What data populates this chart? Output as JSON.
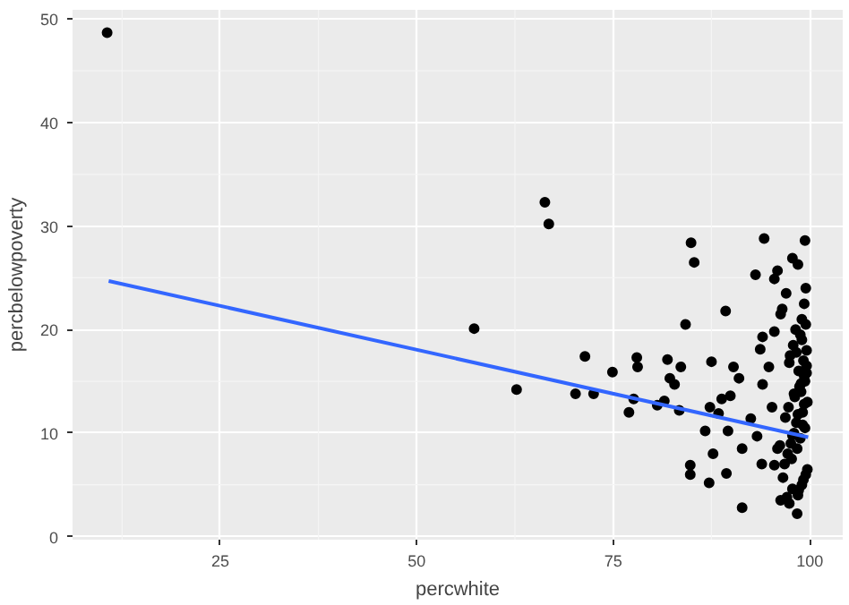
{
  "chart_data": {
    "type": "scatter",
    "xlabel": "percwhite",
    "ylabel": "percbelowpoverty",
    "xlim": [
      6.2,
      104.2
    ],
    "ylim": [
      -0.3,
      50.9
    ],
    "xticks": [
      25,
      50,
      75,
      100
    ],
    "yticks": [
      0,
      10,
      20,
      30,
      40,
      50
    ],
    "grid": true,
    "series": [
      {
        "marker": "circle",
        "color": "#000000",
        "x": [
          10.6,
          66.3,
          66.8,
          57.3,
          62.7,
          71.4,
          70.2,
          72.5,
          74.9,
          78.0,
          78.1,
          77.6,
          77.0,
          80.6,
          81.5,
          81.9,
          83.6,
          82.2,
          82.8,
          84.2,
          84.9,
          85.3,
          83.4,
          84.8,
          84.8,
          87.2,
          87.5,
          89.3,
          89.4,
          91.4,
          94.2,
          93.1,
          87.7,
          86.7,
          87.3,
          88.8,
          89.9,
          88.4,
          90.3,
          91.0,
          89.6,
          91.4,
          92.5,
          93.3,
          93.7,
          94.0,
          95.5,
          95.9,
          97.8,
          98.5,
          99.4,
          97.0,
          96.3,
          95.5,
          94.8,
          94.0,
          95.2,
          95.5,
          93.9,
          96.3,
          97.4,
          98.4,
          97.8,
          96.6,
          95.9,
          99.5,
          99.3,
          99.0,
          98.8,
          99.6,
          99.2,
          98.6,
          99.4,
          98.9,
          99.7,
          99.1,
          98.3,
          98.0,
          97.6,
          97.2,
          96.8,
          99.5,
          99.0,
          98.5,
          98.2,
          97.9,
          97.5,
          99.6,
          99.3,
          98.7,
          98.1,
          97.3,
          96.9,
          99.4,
          98.8,
          98.4,
          97.7,
          99.7,
          99.2,
          98.6,
          97.1,
          96.5,
          99.5,
          99.0,
          98.3,
          97.4,
          99.6,
          98.9,
          98.0,
          99.3,
          98.5,
          99.1,
          97.8,
          96.2
        ],
        "values": [
          48.7,
          32.3,
          30.2,
          20.1,
          14.2,
          17.4,
          13.8,
          13.8,
          15.9,
          17.3,
          16.4,
          13.3,
          12.0,
          12.7,
          13.1,
          17.1,
          16.4,
          15.3,
          14.7,
          20.5,
          28.4,
          26.5,
          12.2,
          6.9,
          6.0,
          5.2,
          16.9,
          21.8,
          6.1,
          2.8,
          28.8,
          25.3,
          8.0,
          10.2,
          12.5,
          13.3,
          13.6,
          11.9,
          16.4,
          15.3,
          10.2,
          8.5,
          11.4,
          9.7,
          18.1,
          19.3,
          24.9,
          25.7,
          26.9,
          26.3,
          28.6,
          23.5,
          21.5,
          19.8,
          16.4,
          14.7,
          12.5,
          6.9,
          7.0,
          3.5,
          3.2,
          2.2,
          4.6,
          5.7,
          8.5,
          24.0,
          22.5,
          21.0,
          19.5,
          18.0,
          17.0,
          16.0,
          15.0,
          14.0,
          13.0,
          12.0,
          11.0,
          10.0,
          9.0,
          8.0,
          7.0,
          6.0,
          5.0,
          4.0,
          20.0,
          18.5,
          17.5,
          16.5,
          15.5,
          14.5,
          13.5,
          12.5,
          11.5,
          10.5,
          9.5,
          8.5,
          7.5,
          6.5,
          5.5,
          4.5,
          3.8,
          22.0,
          20.5,
          19.0,
          17.8,
          16.8,
          15.8,
          14.8,
          13.8,
          12.8,
          11.8,
          10.8,
          9.8,
          8.8
        ]
      },
      {
        "type": "line",
        "color": "#3366ff",
        "x": [
          10.8,
          99.8
        ],
        "values": [
          24.7,
          9.6
        ]
      }
    ]
  }
}
